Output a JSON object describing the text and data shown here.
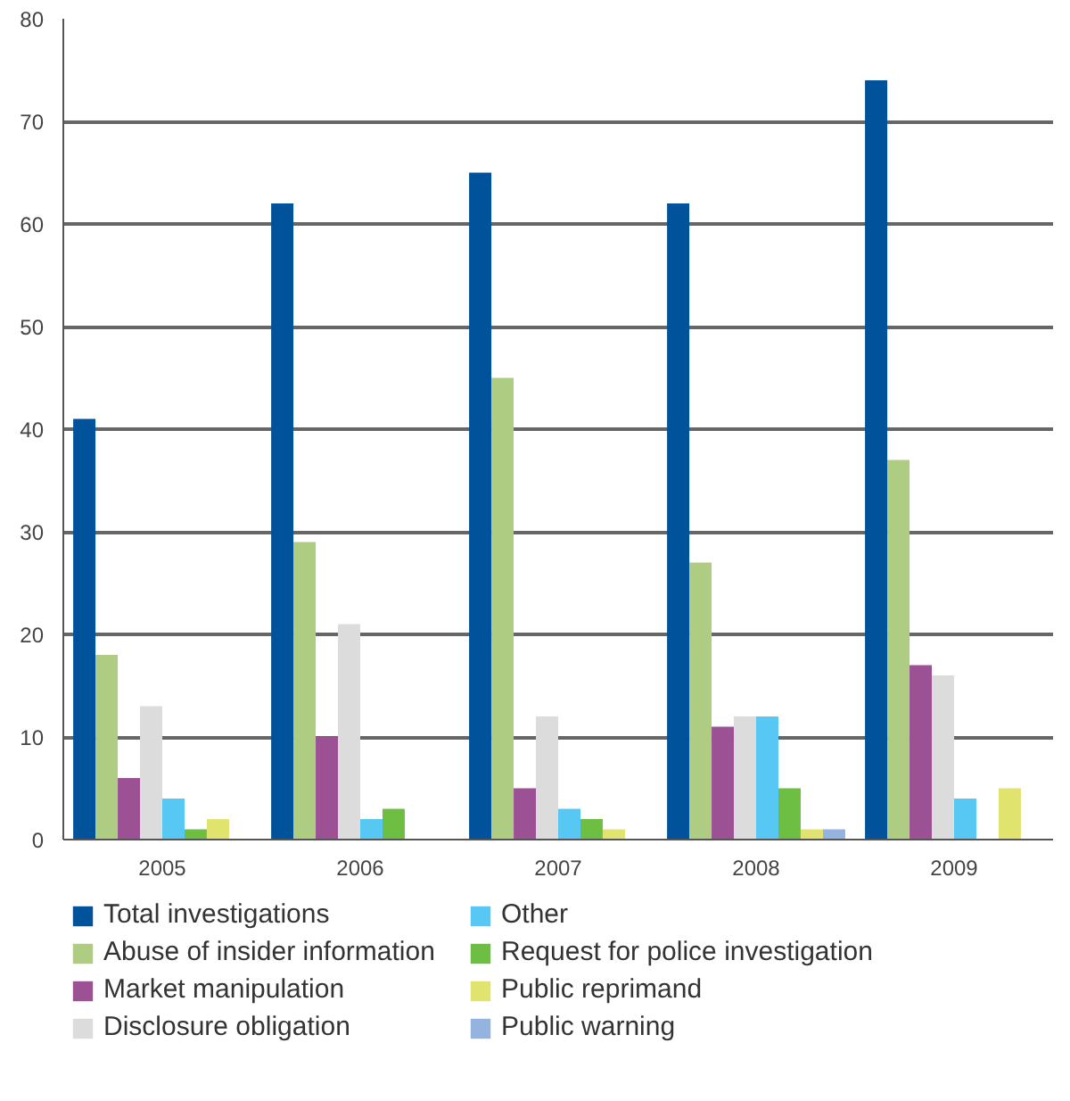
{
  "chart_data": {
    "type": "bar",
    "categories": [
      "2005",
      "2006",
      "2007",
      "2008",
      "2009"
    ],
    "series": [
      {
        "name": "Total investigations",
        "color": "#00529b",
        "values": [
          41,
          62,
          65,
          62,
          74
        ]
      },
      {
        "name": "Abuse of insider information",
        "color": "#afcd82",
        "values": [
          18,
          29,
          45,
          27,
          37
        ]
      },
      {
        "name": "Market manipulation",
        "color": "#9b5194",
        "values": [
          6,
          10,
          5,
          11,
          17
        ]
      },
      {
        "name": "Disclosure obligation",
        "color": "#dcdcdd",
        "values": [
          13,
          21,
          12,
          12,
          16
        ]
      },
      {
        "name": "Other",
        "color": "#56c8f3",
        "values": [
          4,
          2,
          3,
          12,
          4
        ]
      },
      {
        "name": "Request for police investigation",
        "color": "#6fbe44",
        "values": [
          1,
          3,
          2,
          5,
          0
        ]
      },
      {
        "name": "Public reprimand",
        "color": "#e1e36f",
        "values": [
          2,
          0,
          1,
          1,
          5
        ]
      },
      {
        "name": "Public warning",
        "color": "#94b4df",
        "values": [
          0,
          0,
          0,
          1,
          0
        ]
      }
    ],
    "ylim": [
      0,
      80
    ],
    "yticks": [
      0,
      10,
      20,
      30,
      40,
      50,
      60,
      70,
      80
    ],
    "grid": "y",
    "legend": "bottom"
  }
}
